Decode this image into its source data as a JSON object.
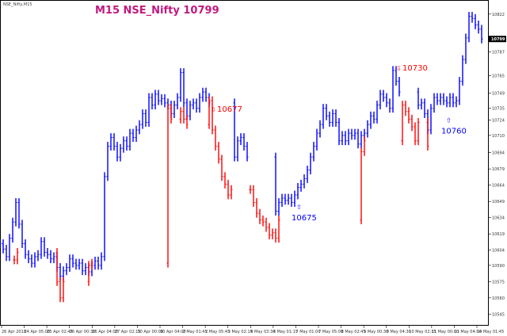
{
  "symbol_label": "NSE_Nifty,M15",
  "chart_data": {
    "type": "bar",
    "title": "M15 NSE_Nifty 10799",
    "current_price": "10799",
    "y_range": [
      10535,
      10835
    ],
    "y_ticks": [
      "10822",
      "10799",
      "10787",
      "10765",
      "10749",
      "10735",
      "10724",
      "10710",
      "10694",
      "10679",
      "10664",
      "10649",
      "10634",
      "10619",
      "10604",
      "10590",
      "10575",
      "10560",
      "10545"
    ],
    "x_ticks": [
      "26 Apr 2018",
      "24 Apr 05:00",
      "25 Apr 02:45",
      "26 Apr 00:30",
      "26 Apr 04:00",
      "27 Apr 02:15",
      "30 Apr 00:00",
      "30 Apr 04:00",
      "2 May 01:45",
      "2 May 05:45",
      "3 May 02:15",
      "4 May 03:30",
      "4 May 01:15",
      "7 May 01:00",
      "7 May 05:00",
      "8 May 02:45",
      "9 May 00:30",
      "9 May 04:30",
      "10 May 02:15",
      "11 May 00:00",
      "11 May 04:00",
      "14 May 01:45"
    ],
    "series": [
      {
        "color": "#0000ff",
        "points": [
          [
            0,
            10610
          ],
          [
            4,
            10605
          ],
          [
            8,
            10598
          ],
          [
            12,
            10615
          ],
          [
            16,
            10630
          ],
          [
            20,
            10648
          ],
          [
            24,
            10628
          ],
          [
            28,
            10610
          ],
          [
            32,
            10600
          ],
          [
            36,
            10596
          ],
          [
            40,
            10592
          ],
          [
            44,
            10598
          ],
          [
            48,
            10600
          ],
          [
            52,
            10612
          ],
          [
            56,
            10602
          ],
          [
            60,
            10600
          ],
          [
            64,
            10596
          ],
          [
            68,
            10598
          ],
          [
            72,
            10588
          ],
          [
            76,
            10580
          ],
          [
            80,
            10585
          ],
          [
            84,
            10588
          ],
          [
            88,
            10596
          ],
          [
            92,
            10592
          ],
          [
            96,
            10590
          ],
          [
            100,
            10592
          ],
          [
            104,
            10585
          ],
          [
            108,
            10588
          ],
          [
            112,
            10584
          ],
          [
            116,
            10590
          ],
          [
            120,
            10594
          ],
          [
            124,
            10590
          ],
          [
            128,
            10598
          ],
          [
            132,
            10672
          ],
          [
            136,
            10700
          ],
          [
            140,
            10708
          ],
          [
            144,
            10700
          ],
          [
            148,
            10690
          ],
          [
            152,
            10698
          ],
          [
            156,
            10705
          ],
          [
            160,
            10700
          ],
          [
            164,
            10712
          ],
          [
            168,
            10708
          ],
          [
            172,
            10715
          ],
          [
            176,
            10720
          ],
          [
            180,
            10730
          ],
          [
            184,
            10722
          ],
          [
            188,
            10745
          ],
          [
            192,
            10738
          ],
          [
            196,
            10748
          ],
          [
            200,
            10742
          ],
          [
            204,
            10744
          ],
          [
            208,
            10740
          ],
          [
            212,
            10738
          ],
          [
            216,
            10730
          ],
          [
            220,
            10738
          ],
          [
            224,
            10745
          ],
          [
            228,
            10768
          ],
          [
            232,
            10740
          ],
          [
            236,
            10728
          ],
          [
            240,
            10738
          ],
          [
            244,
            10740
          ],
          [
            248,
            10735
          ],
          [
            252,
            10745
          ],
          [
            256,
            10750
          ],
          [
            260,
            10745
          ],
          [
            264,
            10740
          ],
          [
            296,
            10690
          ],
          [
            300,
            10705
          ],
          [
            304,
            10708
          ],
          [
            308,
            10700
          ],
          [
            312,
            10690
          ],
          [
            348,
            10640
          ],
          [
            352,
            10648
          ],
          [
            356,
            10652
          ],
          [
            360,
            10650
          ],
          [
            364,
            10652
          ],
          [
            368,
            10648
          ],
          [
            372,
            10655
          ],
          [
            376,
            10662
          ],
          [
            380,
            10665
          ],
          [
            384,
            10670
          ],
          [
            388,
            10678
          ],
          [
            392,
            10690
          ],
          [
            396,
            10700
          ],
          [
            400,
            10712
          ],
          [
            404,
            10720
          ],
          [
            408,
            10735
          ],
          [
            412,
            10728
          ],
          [
            416,
            10722
          ],
          [
            420,
            10730
          ],
          [
            424,
            10722
          ],
          [
            428,
            10705
          ],
          [
            432,
            10710
          ],
          [
            436,
            10705
          ],
          [
            440,
            10712
          ],
          [
            444,
            10710
          ],
          [
            448,
            10712
          ],
          [
            452,
            10702
          ],
          [
            456,
            10710
          ],
          [
            460,
            10712
          ],
          [
            464,
            10720
          ],
          [
            468,
            10728
          ],
          [
            472,
            10725
          ],
          [
            476,
            10738
          ],
          [
            480,
            10748
          ],
          [
            484,
            10745
          ],
          [
            488,
            10740
          ],
          [
            492,
            10735
          ],
          [
            496,
            10770
          ],
          [
            500,
            10760
          ],
          [
            504,
            10750
          ],
          [
            528,
            10738
          ],
          [
            532,
            10740
          ],
          [
            536,
            10730
          ],
          [
            540,
            10715
          ],
          [
            544,
            10735
          ],
          [
            548,
            10745
          ],
          [
            552,
            10742
          ],
          [
            556,
            10745
          ],
          [
            560,
            10742
          ],
          [
            564,
            10740
          ],
          [
            568,
            10745
          ],
          [
            572,
            10740
          ],
          [
            576,
            10742
          ],
          [
            580,
            10760
          ],
          [
            584,
            10780
          ],
          [
            588,
            10800
          ],
          [
            592,
            10820
          ],
          [
            596,
            10818
          ],
          [
            600,
            10812
          ],
          [
            604,
            10808
          ],
          [
            608,
            10799
          ]
        ]
      },
      {
        "color": "#ff0000",
        "points": [
          [
            18,
            10595
          ],
          [
            22,
            10602
          ],
          [
            72,
            10575
          ],
          [
            76,
            10560
          ],
          [
            80,
            10575
          ],
          [
            112,
            10590
          ],
          [
            116,
            10592
          ],
          [
            212,
            10735
          ],
          [
            216,
            10725
          ],
          [
            228,
            10732
          ],
          [
            232,
            10725
          ],
          [
            236,
            10720
          ],
          [
            264,
            10742
          ],
          [
            268,
            10715
          ],
          [
            272,
            10700
          ],
          [
            276,
            10688
          ],
          [
            280,
            10672
          ],
          [
            284,
            10665
          ],
          [
            288,
            10655
          ],
          [
            292,
            10660
          ],
          [
            316,
            10660
          ],
          [
            320,
            10648
          ],
          [
            324,
            10638
          ],
          [
            328,
            10632
          ],
          [
            332,
            10630
          ],
          [
            336,
            10625
          ],
          [
            340,
            10618
          ],
          [
            344,
            10620
          ],
          [
            348,
            10615
          ],
          [
            352,
            10632
          ],
          [
            456,
            10695
          ],
          [
            460,
            10705
          ],
          [
            508,
            10738
          ],
          [
            512,
            10732
          ],
          [
            516,
            10725
          ],
          [
            520,
            10718
          ],
          [
            524,
            10705
          ],
          [
            528,
            10722
          ],
          [
            540,
            10700
          ]
        ]
      }
    ],
    "annotations": [
      {
        "text": "10677",
        "color": "#ff0000",
        "arrow": "down",
        "x": 270,
        "y": 10732
      },
      {
        "text": "10730",
        "color": "#ff0000",
        "arrow": "down",
        "x": 504,
        "y": 10770
      },
      {
        "text": "10675",
        "color": "#0000ff",
        "arrow": "up",
        "x": 378,
        "y": 10642
      },
      {
        "text": "10760",
        "color": "#0000ff",
        "arrow": "up",
        "x": 567,
        "y": 10722
      }
    ]
  }
}
